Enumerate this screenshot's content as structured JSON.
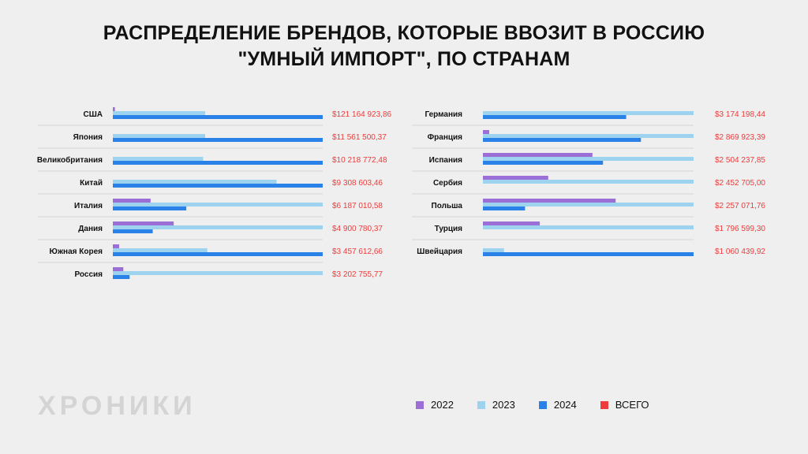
{
  "title_lines": [
    "РАСПРЕДЕЛЕНИЕ БРЕНДОВ, КОТОРЫЕ ВВОЗИТ В РОССИЮ",
    "\"УМНЫЙ ИМПОРТ\", ПО СТРАНАМ"
  ],
  "brand": "ХРОНИКИ",
  "legend": [
    {
      "label": "2022",
      "color": "#9b6fd6"
    },
    {
      "label": "2023",
      "color": "#9ed3ef"
    },
    {
      "label": "2024",
      "color": "#2a82e8"
    },
    {
      "label": "ВСЕГО",
      "color": "#ee3b3b"
    }
  ],
  "colors": {
    "y2022": "#9b6fd6",
    "y2023": "#9ed3ef",
    "y2024": "#2a82e8",
    "total": "#ee3b3b"
  },
  "chart_data": {
    "type": "bar",
    "orientation": "horizontal",
    "title": "РАСПРЕДЕЛЕНИЕ БРЕНДОВ, КОТОРЫЕ ВВОЗИТ В РОССИЮ \"УМНЫЙ ИМПОРТ\", ПО СТРАНАМ",
    "series_names": [
      "2022",
      "2023",
      "2024"
    ],
    "value_scale": "share of each country's maximum yearly value",
    "panels": [
      {
        "rows": [
          {
            "country": "США",
            "total": "$121 164 923,86",
            "v2022": 0.01,
            "v2023": 0.44,
            "v2024": 1.0
          },
          {
            "country": "Япония",
            "total": "$11 561 500,37",
            "v2022": 0,
            "v2023": 0.44,
            "v2024": 1.0
          },
          {
            "country": "Великобритания",
            "total": "$10 218 772,48",
            "v2022": 0,
            "v2023": 0.43,
            "v2024": 1.0
          },
          {
            "country": "Китай",
            "total": "$9 308 603,46",
            "v2022": 0,
            "v2023": 0.78,
            "v2024": 1.0
          },
          {
            "country": "Италия",
            "total": "$6 187 010,58",
            "v2022": 0.18,
            "v2023": 1.0,
            "v2024": 0.35
          },
          {
            "country": "Дания",
            "total": "$4 900 780,37",
            "v2022": 0.29,
            "v2023": 1.0,
            "v2024": 0.19
          },
          {
            "country": "Южная Корея",
            "total": "$3 457 612,66",
            "v2022": 0.03,
            "v2023": 0.45,
            "v2024": 1.0
          },
          {
            "country": "Россия",
            "total": "$3 202 755,77",
            "v2022": 0.05,
            "v2023": 1.0,
            "v2024": 0.08
          }
        ]
      },
      {
        "rows": [
          {
            "country": "Германия",
            "total": "$3 174 198,44",
            "v2022": 0,
            "v2023": 1.0,
            "v2024": 0.68
          },
          {
            "country": "Франция",
            "total": "$2 869 923,39",
            "v2022": 0.03,
            "v2023": 1.0,
            "v2024": 0.75
          },
          {
            "country": "Испания",
            "total": "$2 504 237,85",
            "v2022": 0.52,
            "v2023": 1.0,
            "v2024": 0.57
          },
          {
            "country": "Сербия",
            "total": "$2 452 705,00",
            "v2022": 0.31,
            "v2023": 1.0,
            "v2024": 0
          },
          {
            "country": "Польша",
            "total": "$2 257 071,76",
            "v2022": 0.63,
            "v2023": 1.0,
            "v2024": 0.2
          },
          {
            "country": "Турция",
            "total": "$1 796 599,30",
            "v2022": 0.27,
            "v2023": 1.0,
            "v2024": 0
          },
          {
            "country": "Швейцария",
            "total": "$1 060 439,92",
            "v2022": 0,
            "v2023": 0.1,
            "v2024": 1.0
          }
        ]
      }
    ]
  }
}
